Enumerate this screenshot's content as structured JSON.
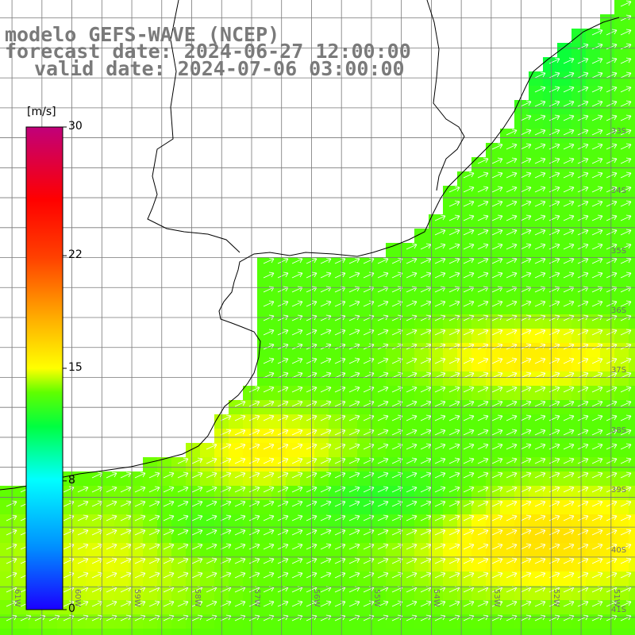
{
  "title": {
    "model": "modelo GEFS-WAVE (NCEP)",
    "forecast": "forecast date: 2024-06-27 12:00:00",
    "valid": "valid date: 2024-07-06 03:00:00"
  },
  "colorbar": {
    "unit": "[m/s]",
    "ticks": [
      "30",
      "22",
      "15",
      "8",
      "0"
    ],
    "tick_values": [
      30,
      22,
      15,
      8,
      0
    ],
    "colors": [
      "#1a00ff",
      "#0090ff",
      "#00ffff",
      "#00ff40",
      "#60ff00",
      "#ffff00",
      "#ffb000",
      "#ff4000",
      "#ff0000",
      "#c0007a"
    ]
  },
  "axes": {
    "lat_labels": [
      "33S",
      "34S",
      "35S",
      "36S",
      "37S",
      "38S",
      "39S",
      "40S",
      "41S"
    ],
    "lat_values": [
      -33,
      -34,
      -35,
      -36,
      -37,
      -38,
      -39,
      -40,
      -41
    ],
    "lon_labels": [
      "61W",
      "60W",
      "59W",
      "58W",
      "57W",
      "56W",
      "55W",
      "54W",
      "53W",
      "52W",
      "51W"
    ],
    "lon_values": [
      -61,
      -60,
      -59,
      -58,
      -57,
      -56,
      -55,
      -54,
      -53,
      -52,
      -51
    ]
  },
  "map": {
    "projection": "lat-lon",
    "lon_range": [
      -61.2,
      -50.6
    ],
    "lat_range": [
      -41.3,
      -30.7
    ],
    "variable": "wind speed",
    "arrow_direction": "toward northeast",
    "land_color": "#ffffff"
  }
}
